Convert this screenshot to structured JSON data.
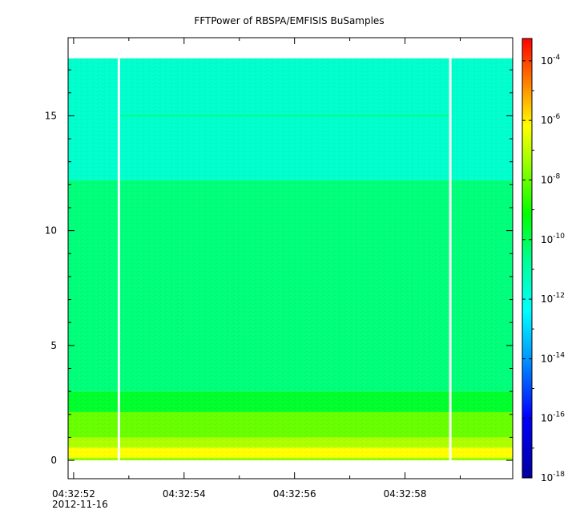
{
  "chart_data": {
    "type": "heatmap",
    "title": "FFTPower of RBSPA/EMFISIS  BuSamples",
    "xlabel": "",
    "ylabel": "",
    "x_ticks": [
      {
        "value": 52,
        "label": "04:32:52"
      },
      {
        "value": 54,
        "label": "04:32:54"
      },
      {
        "value": 56,
        "label": "04:32:56"
      },
      {
        "value": 58,
        "label": "04:32:58"
      }
    ],
    "x_date_label": "2012-11-16",
    "xlim": [
      51.9,
      59.95
    ],
    "y_ticks": [
      0,
      5,
      10,
      15
    ],
    "ylim": [
      -0.8,
      18.4
    ],
    "data_extent": {
      "x": [
        51.9,
        59.95
      ],
      "y": [
        0,
        17.5
      ]
    },
    "gaps_x": [
      52.82,
      58.82
    ],
    "colorbar": {
      "scale": "log",
      "range_exponent": [
        -18,
        -3.25
      ],
      "tick_exponents": [
        -18,
        -16,
        -14,
        -12,
        -10,
        -8,
        -6,
        -4
      ],
      "base_label": "10"
    },
    "bands": [
      {
        "y": [
          0,
          0.12
        ],
        "log_power": -7.5
      },
      {
        "y": [
          0.12,
          0.55
        ],
        "log_power": -6.2
      },
      {
        "y": [
          0.55,
          1.0
        ],
        "log_power": -7.2
      },
      {
        "y": [
          1.0,
          2.1
        ],
        "log_power": -8.0
      },
      {
        "y": [
          2.1,
          3.0
        ],
        "log_power": -9.6
      },
      {
        "y": [
          3.0,
          12.2
        ],
        "log_power": -10.4
      },
      {
        "y": [
          12.2,
          17.5
        ],
        "log_power": -11.6
      }
    ],
    "line_features": [
      {
        "y": 15.0,
        "log_power": -10.5
      }
    ]
  }
}
